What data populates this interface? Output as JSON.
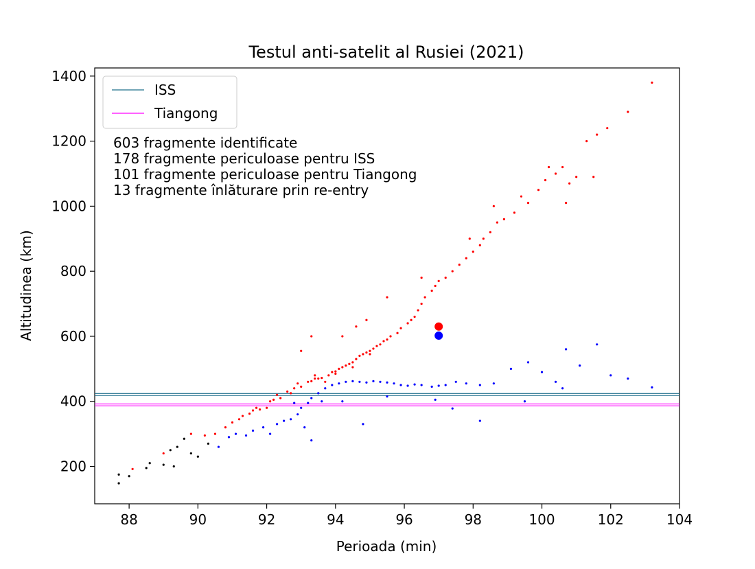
{
  "chart_data": {
    "type": "scatter",
    "title": "Testul anti-satelit al Rusiei (2021)",
    "xlabel": "Perioada (min)",
    "ylabel": "Altitudinea (km)",
    "xlim": [
      87,
      104
    ],
    "ylim": [
      85,
      1425
    ],
    "xticks": [
      88,
      90,
      92,
      94,
      96,
      98,
      100,
      102,
      104
    ],
    "yticks": [
      200,
      400,
      600,
      800,
      1000,
      1200,
      1400
    ],
    "grid": false,
    "legend_position": "top-left",
    "reference_lines": [
      {
        "name": "ISS",
        "color": "#1f6f8b",
        "y": [
          418,
          424
        ]
      },
      {
        "name": "Tiangong",
        "color": "#ff00ff",
        "y": [
          386,
          392
        ]
      }
    ],
    "annotations": [
      "603 fragmente identificate",
      "178 fragmente periculoase pentru ISS",
      "101 fragmente periculoase pentru Tiangong",
      "13 fragmente înlăturare prin re-entry"
    ],
    "series": [
      {
        "color": "#ff0000",
        "role": "apogee",
        "points": [
          [
            88.1,
            192
          ],
          [
            89.0,
            240
          ],
          [
            89.8,
            300
          ],
          [
            90.2,
            295
          ],
          [
            90.5,
            300
          ],
          [
            90.8,
            320
          ],
          [
            91.0,
            335
          ],
          [
            91.2,
            345
          ],
          [
            91.3,
            355
          ],
          [
            91.5,
            362
          ],
          [
            91.6,
            372
          ],
          [
            91.8,
            375
          ],
          [
            91.7,
            380
          ],
          [
            92.0,
            380
          ],
          [
            92.1,
            400
          ],
          [
            92.4,
            410
          ],
          [
            92.3,
            420
          ],
          [
            92.6,
            430
          ],
          [
            92.8,
            440
          ],
          [
            93.0,
            445
          ],
          [
            92.9,
            455
          ],
          [
            93.2,
            460
          ],
          [
            93.3,
            462
          ],
          [
            93.5,
            470
          ],
          [
            93.4,
            480
          ],
          [
            93.6,
            472
          ],
          [
            93.8,
            480
          ],
          [
            93.9,
            490
          ],
          [
            94.0,
            492
          ],
          [
            94.1,
            500
          ],
          [
            94.2,
            505
          ],
          [
            94.3,
            510
          ],
          [
            94.4,
            515
          ],
          [
            94.5,
            520
          ],
          [
            94.6,
            530
          ],
          [
            94.7,
            540
          ],
          [
            94.8,
            545
          ],
          [
            94.9,
            550
          ],
          [
            95.0,
            555
          ],
          [
            95.1,
            562
          ],
          [
            95.2,
            570
          ],
          [
            95.3,
            575
          ],
          [
            95.4,
            585
          ],
          [
            95.5,
            590
          ],
          [
            95.6,
            600
          ],
          [
            95.8,
            610
          ],
          [
            95.9,
            625
          ],
          [
            96.1,
            640
          ],
          [
            96.2,
            650
          ],
          [
            96.3,
            660
          ],
          [
            96.4,
            680
          ],
          [
            96.5,
            700
          ],
          [
            96.6,
            720
          ],
          [
            96.8,
            740
          ],
          [
            96.9,
            755
          ],
          [
            97.0,
            770
          ],
          [
            97.2,
            780
          ],
          [
            97.4,
            800
          ],
          [
            97.6,
            820
          ],
          [
            97.8,
            840
          ],
          [
            98.0,
            860
          ],
          [
            98.2,
            880
          ],
          [
            98.3,
            900
          ],
          [
            98.5,
            920
          ],
          [
            98.7,
            950
          ],
          [
            98.9,
            960
          ],
          [
            99.2,
            980
          ],
          [
            99.6,
            1010
          ],
          [
            99.9,
            1050
          ],
          [
            100.1,
            1080
          ],
          [
            100.4,
            1100
          ],
          [
            100.6,
            1120
          ],
          [
            100.8,
            1070
          ],
          [
            101.0,
            1090
          ],
          [
            101.3,
            1200
          ],
          [
            101.6,
            1220
          ],
          [
            101.9,
            1240
          ],
          [
            102.5,
            1290
          ],
          [
            103.2,
            1380
          ],
          [
            94.2,
            600
          ],
          [
            94.6,
            630
          ],
          [
            93.3,
            600
          ],
          [
            93.0,
            555
          ],
          [
            94.9,
            650
          ],
          [
            95.5,
            720
          ],
          [
            96.5,
            780
          ],
          [
            97.9,
            900
          ],
          [
            98.6,
            1000
          ],
          [
            99.4,
            1030
          ],
          [
            100.7,
            1010
          ],
          [
            101.5,
            1090
          ],
          [
            100.2,
            1120
          ],
          [
            93.7,
            460
          ],
          [
            94.5,
            505
          ],
          [
            95.0,
            545
          ],
          [
            94.0,
            485
          ],
          [
            93.4,
            470
          ],
          [
            92.7,
            425
          ],
          [
            92.2,
            405
          ]
        ]
      },
      {
        "color": "#0000ff",
        "role": "perigee",
        "points": [
          [
            90.6,
            260
          ],
          [
            90.9,
            290
          ],
          [
            91.1,
            300
          ],
          [
            91.4,
            295
          ],
          [
            91.6,
            310
          ],
          [
            91.9,
            320
          ],
          [
            92.1,
            300
          ],
          [
            92.3,
            330
          ],
          [
            92.5,
            340
          ],
          [
            92.7,
            345
          ],
          [
            92.9,
            360
          ],
          [
            93.0,
            380
          ],
          [
            93.2,
            395
          ],
          [
            93.3,
            410
          ],
          [
            93.5,
            425
          ],
          [
            93.7,
            440
          ],
          [
            93.9,
            450
          ],
          [
            94.1,
            455
          ],
          [
            94.3,
            460
          ],
          [
            94.5,
            462
          ],
          [
            94.7,
            460
          ],
          [
            94.9,
            458
          ],
          [
            95.1,
            462
          ],
          [
            95.3,
            460
          ],
          [
            95.5,
            458
          ],
          [
            95.7,
            455
          ],
          [
            95.9,
            450
          ],
          [
            96.1,
            448
          ],
          [
            96.3,
            452
          ],
          [
            96.5,
            450
          ],
          [
            96.8,
            445
          ],
          [
            97.0,
            448
          ],
          [
            97.2,
            450
          ],
          [
            97.5,
            460
          ],
          [
            97.8,
            455
          ],
          [
            98.2,
            450
          ],
          [
            98.6,
            455
          ],
          [
            99.1,
            500
          ],
          [
            99.6,
            520
          ],
          [
            100.0,
            490
          ],
          [
            100.4,
            460
          ],
          [
            100.7,
            560
          ],
          [
            101.1,
            510
          ],
          [
            101.6,
            575
          ],
          [
            102.0,
            480
          ],
          [
            102.5,
            470
          ],
          [
            103.2,
            443
          ],
          [
            93.3,
            280
          ],
          [
            93.1,
            320
          ],
          [
            94.2,
            400
          ],
          [
            94.8,
            330
          ],
          [
            95.5,
            415
          ],
          [
            96.9,
            405
          ],
          [
            97.4,
            378
          ],
          [
            98.2,
            340
          ],
          [
            99.5,
            400
          ],
          [
            100.6,
            440
          ],
          [
            93.6,
            400
          ],
          [
            92.8,
            395
          ]
        ]
      },
      {
        "color": "#000000",
        "role": "re-entry",
        "points": [
          [
            87.7,
            148
          ],
          [
            87.7,
            175
          ],
          [
            88.0,
            170
          ],
          [
            88.5,
            195
          ],
          [
            88.6,
            210
          ],
          [
            89.0,
            205
          ],
          [
            89.2,
            250
          ],
          [
            89.4,
            260
          ],
          [
            89.6,
            285
          ],
          [
            89.8,
            240
          ],
          [
            90.0,
            230
          ],
          [
            90.3,
            270
          ],
          [
            89.3,
            200
          ]
        ]
      }
    ],
    "highlight_points": [
      {
        "x": 97.0,
        "y": 630,
        "color": "#ff0000"
      },
      {
        "x": 97.0,
        "y": 602,
        "color": "#0000ff"
      }
    ]
  }
}
